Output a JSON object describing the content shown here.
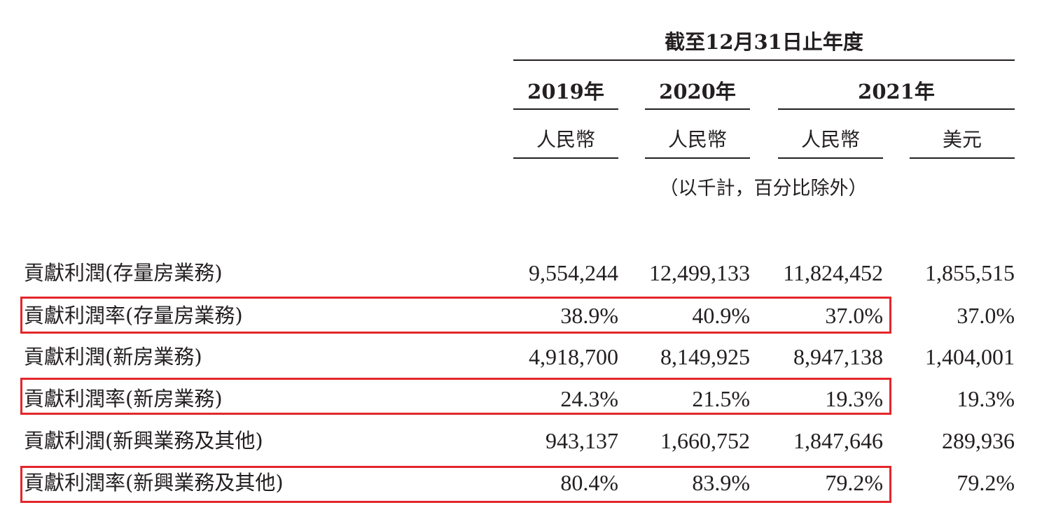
{
  "header": {
    "period": "截至12月31日止年度",
    "years": [
      "2019年",
      "2020年",
      "2021年"
    ],
    "currencies": [
      "人民幣",
      "人民幣",
      "人民幣",
      "美元"
    ],
    "unit_note": "（以千計，百分比除外）"
  },
  "rows": [
    {
      "label": "貢獻利潤(存量房業務)",
      "values": [
        "9,554,244",
        "12,499,133",
        "11,824,452",
        "1,855,515"
      ],
      "highlighted": false
    },
    {
      "label": "貢獻利潤率(存量房業務)",
      "values": [
        "38.9%",
        "40.9%",
        "37.0%",
        "37.0%"
      ],
      "highlighted": true
    },
    {
      "label": "貢獻利潤(新房業務)",
      "values": [
        "4,918,700",
        "8,149,925",
        "8,947,138",
        "1,404,001"
      ],
      "highlighted": false
    },
    {
      "label": "貢獻利潤率(新房業務)",
      "values": [
        "24.3%",
        "21.5%",
        "19.3%",
        "19.3%"
      ],
      "highlighted": true
    },
    {
      "label": "貢獻利潤(新興業務及其他)",
      "values": [
        "943,137",
        "1,660,752",
        "1,847,646",
        "289,936"
      ],
      "highlighted": false
    },
    {
      "label": "貢獻利潤率(新興業務及其他)",
      "values": [
        "80.4%",
        "83.9%",
        "79.2%",
        "79.2%"
      ],
      "highlighted": true
    }
  ],
  "colors": {
    "text": "#231f20",
    "highlight_border": "#e3262b"
  }
}
